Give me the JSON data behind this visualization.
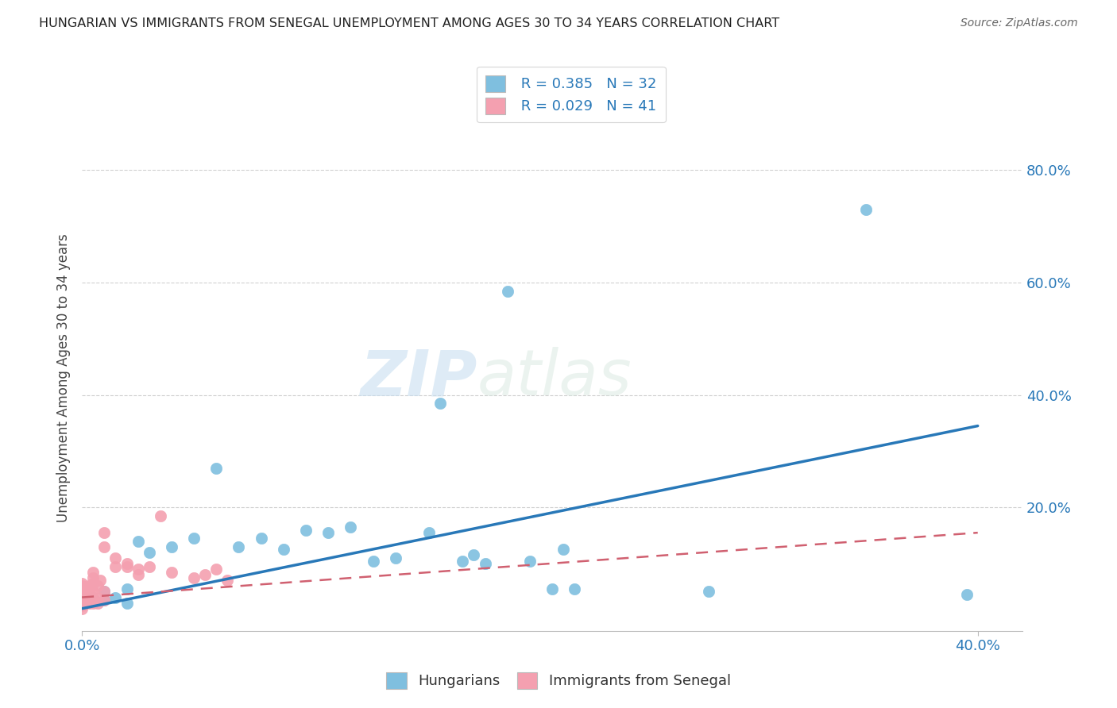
{
  "title": "HUNGARIAN VS IMMIGRANTS FROM SENEGAL UNEMPLOYMENT AMONG AGES 30 TO 34 YEARS CORRELATION CHART",
  "source": "Source: ZipAtlas.com",
  "ylabel": "Unemployment Among Ages 30 to 34 years",
  "xlim": [
    0.0,
    0.42
  ],
  "ylim": [
    -0.02,
    0.88
  ],
  "xtick_positions": [
    0.0,
    0.4
  ],
  "xtick_labels": [
    "0.0%",
    "40.0%"
  ],
  "ytick_positions": [
    0.2,
    0.4,
    0.6,
    0.8
  ],
  "ytick_labels": [
    "20.0%",
    "40.0%",
    "60.0%",
    "80.0%"
  ],
  "blue_color": "#7fbfdf",
  "pink_color": "#f4a0b0",
  "blue_line_color": "#2878b8",
  "pink_line_color": "#d06070",
  "grid_color": "#d0d0d0",
  "watermark_zip": "ZIP",
  "watermark_atlas": "atlas",
  "legend_labels": [
    " R = 0.385   N = 32",
    " R = 0.029   N = 41"
  ],
  "bottom_legend_labels": [
    "Hungarians",
    "Immigrants from Senegal"
  ],
  "blue_scatter_x": [
    0.005,
    0.01,
    0.01,
    0.015,
    0.02,
    0.02,
    0.025,
    0.03,
    0.04,
    0.05,
    0.06,
    0.07,
    0.08,
    0.09,
    0.1,
    0.11,
    0.12,
    0.13,
    0.14,
    0.155,
    0.16,
    0.17,
    0.175,
    0.18,
    0.19,
    0.2,
    0.21,
    0.215,
    0.22,
    0.28,
    0.35,
    0.395
  ],
  "blue_scatter_y": [
    0.04,
    0.05,
    0.035,
    0.04,
    0.055,
    0.03,
    0.14,
    0.12,
    0.13,
    0.145,
    0.27,
    0.13,
    0.145,
    0.125,
    0.16,
    0.155,
    0.165,
    0.105,
    0.11,
    0.155,
    0.385,
    0.105,
    0.115,
    0.1,
    0.585,
    0.105,
    0.055,
    0.125,
    0.055,
    0.05,
    0.73,
    0.045
  ],
  "pink_scatter_x": [
    0.0,
    0.0,
    0.0,
    0.0,
    0.0,
    0.0,
    0.0,
    0.0,
    0.0,
    0.0,
    0.003,
    0.003,
    0.003,
    0.003,
    0.005,
    0.005,
    0.005,
    0.005,
    0.005,
    0.005,
    0.007,
    0.007,
    0.007,
    0.008,
    0.01,
    0.01,
    0.01,
    0.01,
    0.015,
    0.015,
    0.02,
    0.02,
    0.025,
    0.025,
    0.03,
    0.035,
    0.04,
    0.05,
    0.055,
    0.06,
    0.065
  ],
  "pink_scatter_y": [
    0.03,
    0.04,
    0.05,
    0.06,
    0.02,
    0.035,
    0.055,
    0.065,
    0.025,
    0.045,
    0.03,
    0.04,
    0.05,
    0.06,
    0.03,
    0.04,
    0.05,
    0.065,
    0.075,
    0.085,
    0.03,
    0.04,
    0.06,
    0.07,
    0.035,
    0.05,
    0.13,
    0.155,
    0.095,
    0.11,
    0.095,
    0.1,
    0.08,
    0.09,
    0.095,
    0.185,
    0.085,
    0.075,
    0.08,
    0.09,
    0.07
  ],
  "blue_trend_x": [
    0.0,
    0.4
  ],
  "blue_trend_y": [
    0.02,
    0.345
  ],
  "pink_trend_x": [
    0.0,
    0.4
  ],
  "pink_trend_y": [
    0.04,
    0.155
  ]
}
